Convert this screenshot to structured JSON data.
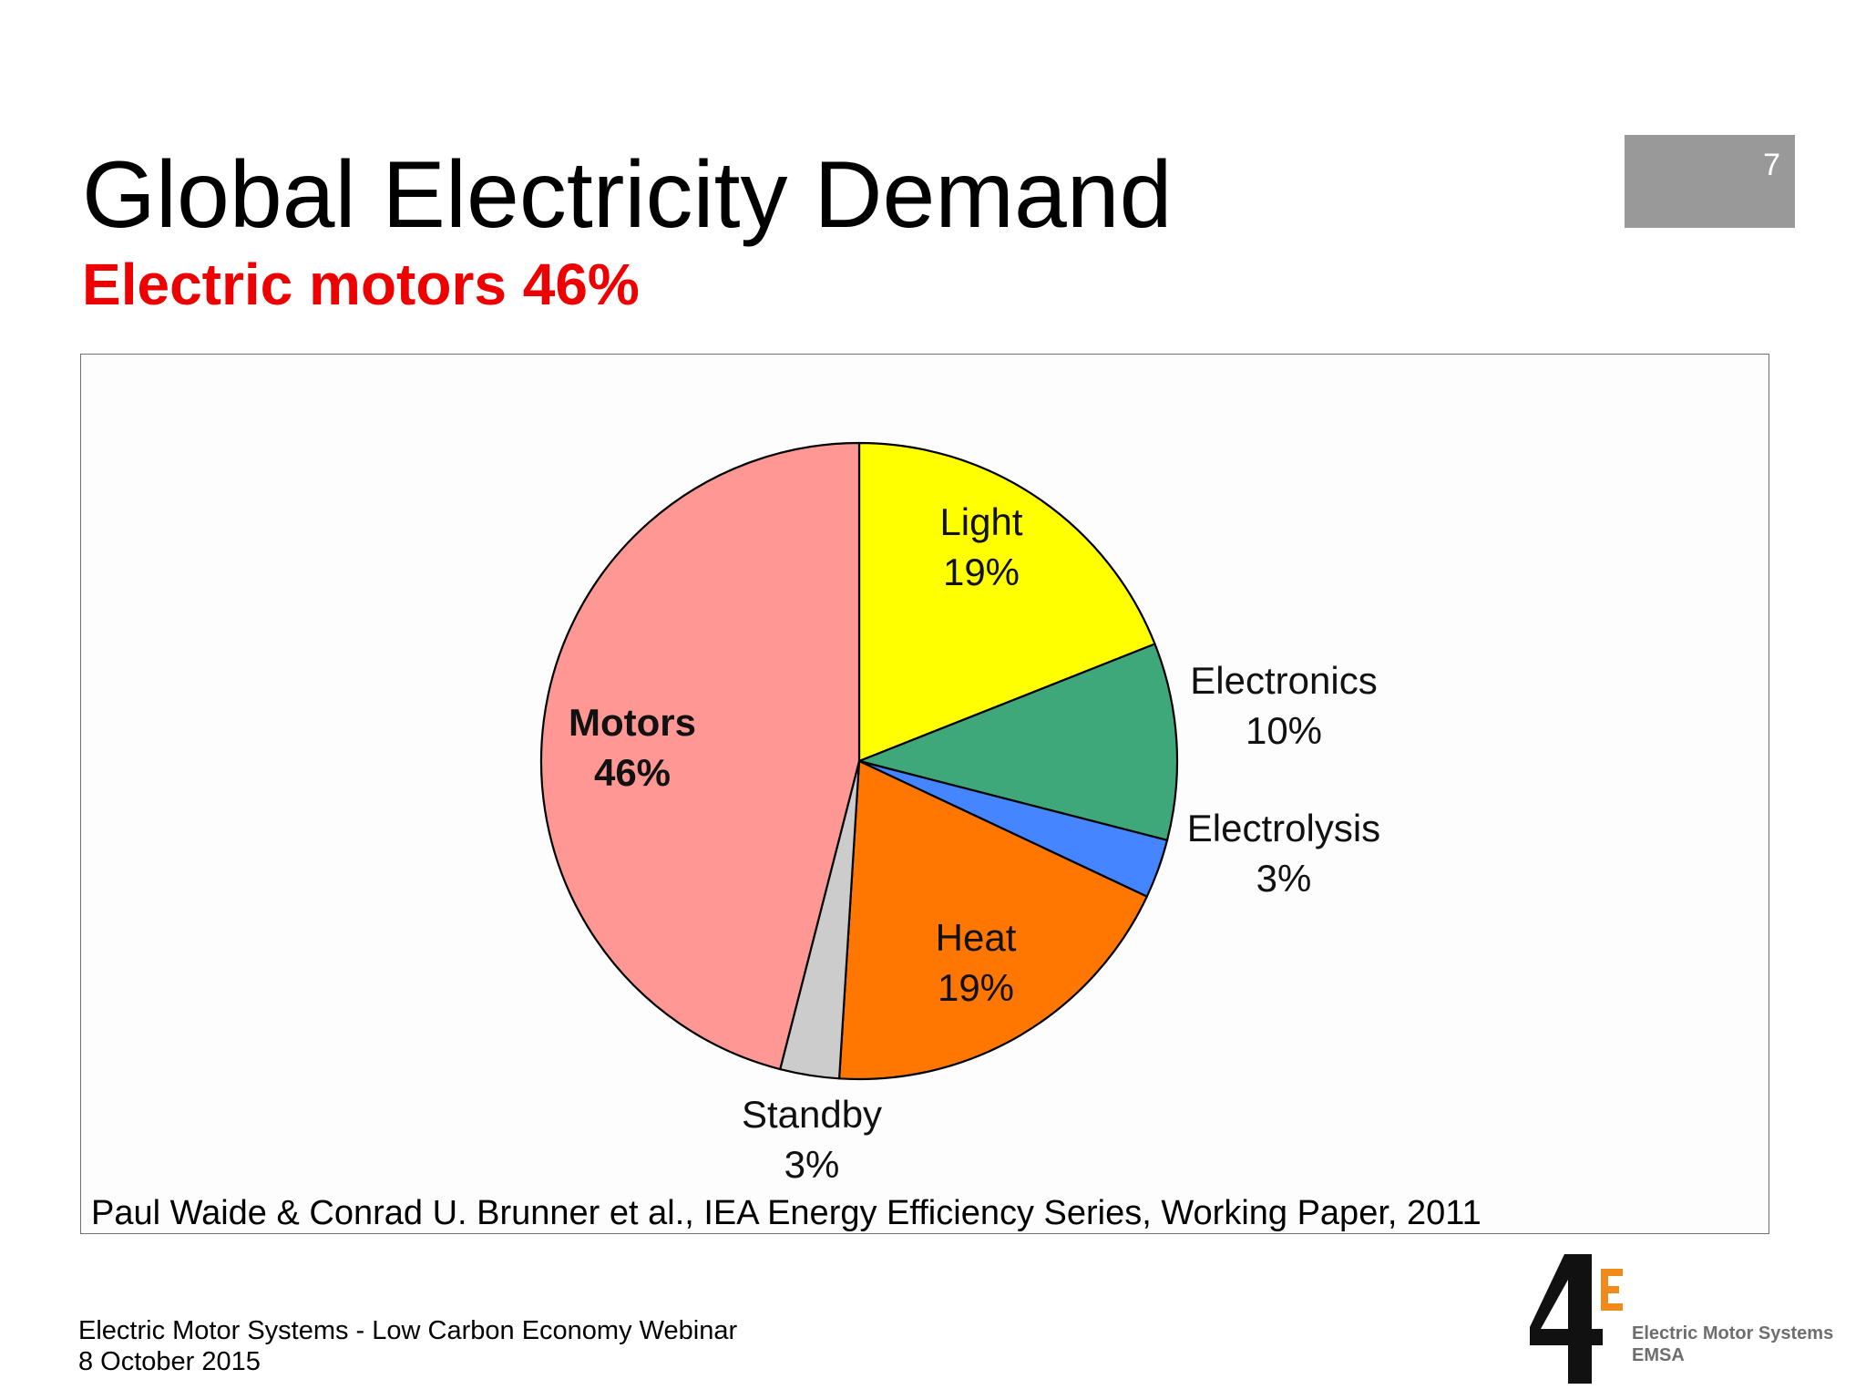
{
  "slide": {
    "title": "Global Electricity Demand",
    "subtitle": "Electric motors 46%",
    "page_number": "7",
    "source": "Paul Waide & Conrad U. Brunner et al., IEA Energy Efficiency Series, Working Paper, 2011"
  },
  "footer": {
    "event": "Electric Motor Systems - Low Carbon Economy Webinar",
    "date": "8 October 2015"
  },
  "logo": {
    "mark": "4E",
    "line1": "Electric Motor Systems",
    "line2": "EMSA"
  },
  "colors": {
    "subtitle": "#ee0000",
    "page_box": "#999999"
  },
  "chart_data": {
    "type": "pie",
    "title": "",
    "start": "12 o'clock, clockwise",
    "slices": [
      {
        "label": "Light",
        "value_label": "19%",
        "value": 19,
        "color": "#ffff00",
        "bold": false
      },
      {
        "label": "Electronics",
        "value_label": "10%",
        "value": 10,
        "color": "#3fa87a",
        "bold": false
      },
      {
        "label": "Electrolysis",
        "value_label": "3%",
        "value": 3,
        "color": "#4585ff",
        "bold": false
      },
      {
        "label": "Heat",
        "value_label": "19%",
        "value": 19,
        "color": "#ff7700",
        "bold": false
      },
      {
        "label": "Standby",
        "value_label": "3%",
        "value": 3,
        "color": "#cccccc",
        "bold": false
      },
      {
        "label": "Motors",
        "value_label": "46%",
        "value": 46,
        "color": "#ff9894",
        "bold": true
      }
    ]
  }
}
